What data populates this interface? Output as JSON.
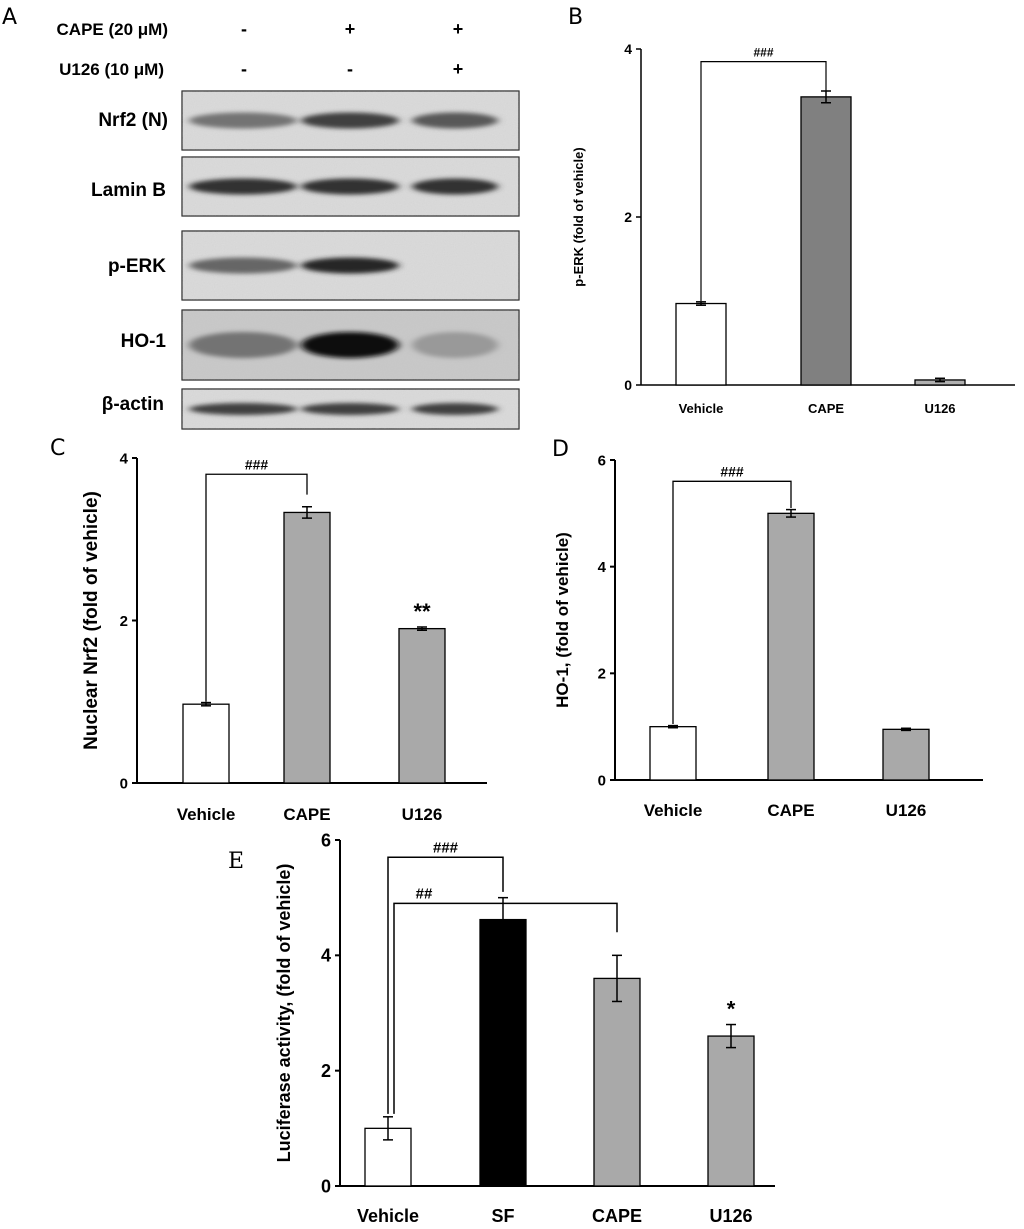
{
  "blot": {
    "panel_label": "A",
    "conditions": [
      {
        "label": "CAPE (20 μM)",
        "signs": [
          "-",
          "+",
          "+"
        ]
      },
      {
        "label": "U126 (10 μM)",
        "signs": [
          "-",
          "-",
          "+"
        ]
      }
    ],
    "bands": [
      {
        "label": "Nrf2 (N)",
        "intensities": [
          0.55,
          0.75,
          0.65
        ]
      },
      {
        "label": "Lamin B",
        "intensities": [
          0.8,
          0.8,
          0.8
        ]
      },
      {
        "label": "p-ERK",
        "intensities": [
          0.6,
          0.85,
          0.0
        ]
      },
      {
        "label": "HO-1",
        "intensities": [
          0.55,
          0.95,
          0.4
        ]
      },
      {
        "label": "β-actin",
        "intensities": [
          0.75,
          0.75,
          0.75
        ]
      }
    ]
  },
  "chart_data": [
    {
      "panel_label": "B",
      "type": "bar",
      "categories": [
        "Vehicle",
        "CAPE",
        "U126"
      ],
      "values": [
        0.97,
        3.43,
        0.06
      ],
      "errors": [
        0.02,
        0.07,
        0.02
      ],
      "bar_colors": [
        "#ffffff",
        "#808080",
        "#b0b0b0"
      ],
      "ylabel": "p-ERK (fold of vehicle)",
      "ylim": [
        0,
        4
      ],
      "yticks": [
        0,
        2,
        4
      ],
      "annotations": [
        {
          "text": "###",
          "from": 0,
          "to": 1,
          "level": 3.85,
          "end_levels": [
            1.0,
            3.5
          ]
        }
      ],
      "star_labels": [
        "",
        "",
        ""
      ]
    },
    {
      "panel_label": "C",
      "type": "bar",
      "categories": [
        "Vehicle",
        "CAPE",
        "U126"
      ],
      "values": [
        0.97,
        3.33,
        1.9
      ],
      "errors": [
        0.02,
        0.07,
        0.02
      ],
      "bar_colors": [
        "#ffffff",
        "#a9a9a9",
        "#a9a9a9"
      ],
      "ylabel": "Nuclear Nrf2 (fold of vehicle)",
      "ylim": [
        0,
        4
      ],
      "yticks": [
        0,
        2,
        4
      ],
      "annotations": [
        {
          "text": "###",
          "from": 0,
          "to": 1,
          "level": 3.8,
          "end_levels": [
            1.0,
            3.55
          ]
        }
      ],
      "star_labels": [
        "",
        "",
        "**"
      ]
    },
    {
      "panel_label": "D",
      "type": "bar",
      "categories": [
        "Vehicle",
        "CAPE",
        "U126"
      ],
      "values": [
        1.0,
        5.0,
        0.95
      ],
      "errors": [
        0.02,
        0.07,
        0.02
      ],
      "bar_colors": [
        "#ffffff",
        "#a9a9a9",
        "#a9a9a9"
      ],
      "ylabel": "HO-1, (fold of vehicle)",
      "ylim": [
        0,
        6
      ],
      "yticks": [
        0,
        2,
        4,
        6
      ],
      "annotations": [
        {
          "text": "###",
          "from": 0,
          "to": 1,
          "level": 5.6,
          "end_levels": [
            1.05,
            5.1
          ]
        }
      ],
      "star_labels": [
        "",
        "",
        ""
      ]
    },
    {
      "panel_label": "E",
      "type": "bar",
      "categories": [
        "Vehicle",
        "SF",
        "CAPE",
        "U126"
      ],
      "values": [
        1.0,
        4.62,
        3.6,
        2.6
      ],
      "errors": [
        0.2,
        0.38,
        0.4,
        0.2
      ],
      "bar_colors": [
        "#ffffff",
        "#000000",
        "#a9a9a9",
        "#a9a9a9"
      ],
      "ylabel": "Luciferase activity, (fold of vehicle)",
      "ylim": [
        0,
        6
      ],
      "yticks": [
        0,
        2,
        4,
        6
      ],
      "annotations": [
        {
          "text": "###",
          "from": 0,
          "to": 1,
          "level": 5.7,
          "end_levels": [
            1.25,
            5.1
          ]
        },
        {
          "text": "##",
          "from": 0,
          "to": 2,
          "level": 4.9,
          "end_levels": [
            1.25,
            4.4
          ]
        }
      ],
      "star_labels": [
        "",
        "",
        "",
        "*"
      ]
    }
  ]
}
